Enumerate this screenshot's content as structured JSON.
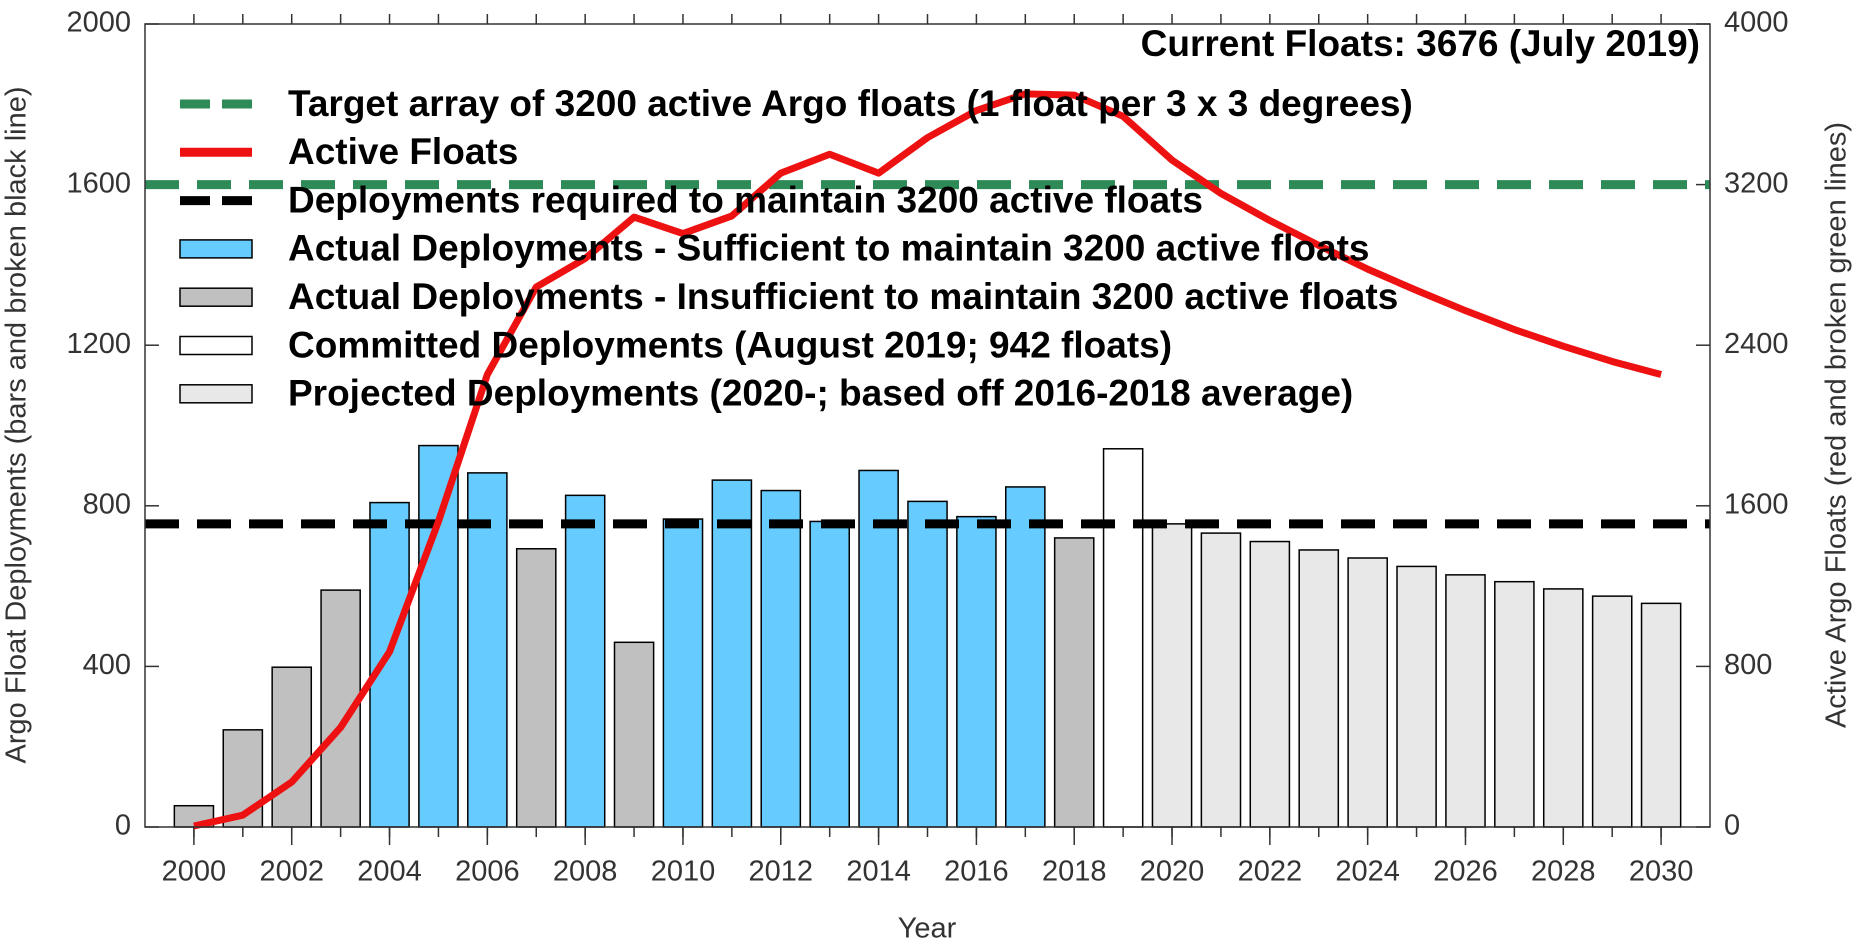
{
  "chart_data": {
    "type": "bar",
    "annotation": "Current Floats: 3676 (July 2019)",
    "xlabel": "Year",
    "ylabel": "Argo Float Deployments (bars and broken black line)",
    "y2label": "Active Argo Floats (red and broken green lines)",
    "x": [
      2000,
      2001,
      2002,
      2003,
      2004,
      2005,
      2006,
      2007,
      2008,
      2009,
      2010,
      2011,
      2012,
      2013,
      2014,
      2015,
      2016,
      2017,
      2018,
      2019,
      2020,
      2021,
      2022,
      2023,
      2024,
      2025,
      2026,
      2027,
      2028,
      2029,
      2030
    ],
    "xlim": [
      1999,
      2031
    ],
    "xticks": [
      2000,
      2002,
      2004,
      2006,
      2008,
      2010,
      2012,
      2014,
      2016,
      2018,
      2020,
      2022,
      2024,
      2026,
      2028,
      2030
    ],
    "ylim": [
      0,
      2000
    ],
    "yticks": [
      0,
      400,
      800,
      1200,
      1600,
      2000
    ],
    "y2lim": [
      0,
      4000
    ],
    "y2ticks": [
      0,
      800,
      1600,
      2400,
      3200,
      4000
    ],
    "series": [
      {
        "name": "Target array of 3200 active Argo floats (1 float per 3 x 3 degrees)",
        "type": "hline",
        "color": "#2e8b57",
        "axis": "y2",
        "value": 3200
      },
      {
        "name": "Active Floats",
        "type": "line",
        "color": "#ee1111",
        "axis": "y2",
        "values": [
          5,
          59,
          224,
          496,
          873,
          1522,
          2254,
          2690,
          2832,
          3038,
          2956,
          3044,
          3257,
          3351,
          3257,
          3434,
          3569,
          3652,
          3646,
          3540,
          3322,
          3156,
          3021,
          2897,
          2779,
          2673,
          2572,
          2478,
          2395,
          2319,
          2254
        ]
      },
      {
        "name": "Deployments required to maintain 3200 active floats",
        "type": "hline",
        "color": "#000000",
        "value": 755
      },
      {
        "name": "Actual Deployments - Sufficient to maintain 3200 active floats",
        "type": "bar",
        "color": "#66ccff",
        "values": [
          null,
          null,
          null,
          null,
          808,
          950,
          882,
          null,
          826,
          null,
          767,
          864,
          838,
          761,
          888,
          811,
          773,
          847,
          null,
          null,
          null,
          null,
          null,
          null,
          null,
          null,
          null,
          null,
          null,
          null,
          null
        ]
      },
      {
        "name": "Actual Deployments - Insufficient to maintain 3200 active floats",
        "type": "bar",
        "color": "#c0c0c0",
        "values": [
          53,
          242,
          398,
          590,
          null,
          null,
          null,
          693,
          null,
          460,
          null,
          null,
          null,
          null,
          null,
          null,
          null,
          null,
          720,
          null,
          null,
          null,
          null,
          null,
          null,
          null,
          null,
          null,
          null,
          null,
          null
        ]
      },
      {
        "name": "Committed Deployments (August 2019; 942 floats)",
        "type": "bar",
        "color": "#ffffff",
        "values": [
          null,
          null,
          null,
          null,
          null,
          null,
          null,
          null,
          null,
          null,
          null,
          null,
          null,
          null,
          null,
          null,
          null,
          null,
          null,
          942,
          null,
          null,
          null,
          null,
          null,
          null,
          null,
          null,
          null,
          null,
          null
        ]
      },
      {
        "name": "Projected Deployments (2020-; based off 2016-2018 average)",
        "type": "bar",
        "color": "#e8e8e8",
        "values": [
          null,
          null,
          null,
          null,
          null,
          null,
          null,
          null,
          null,
          null,
          null,
          null,
          null,
          null,
          null,
          null,
          null,
          null,
          null,
          null,
          755,
          732,
          711,
          690,
          670,
          649,
          628,
          611,
          593,
          575,
          557
        ]
      }
    ]
  }
}
